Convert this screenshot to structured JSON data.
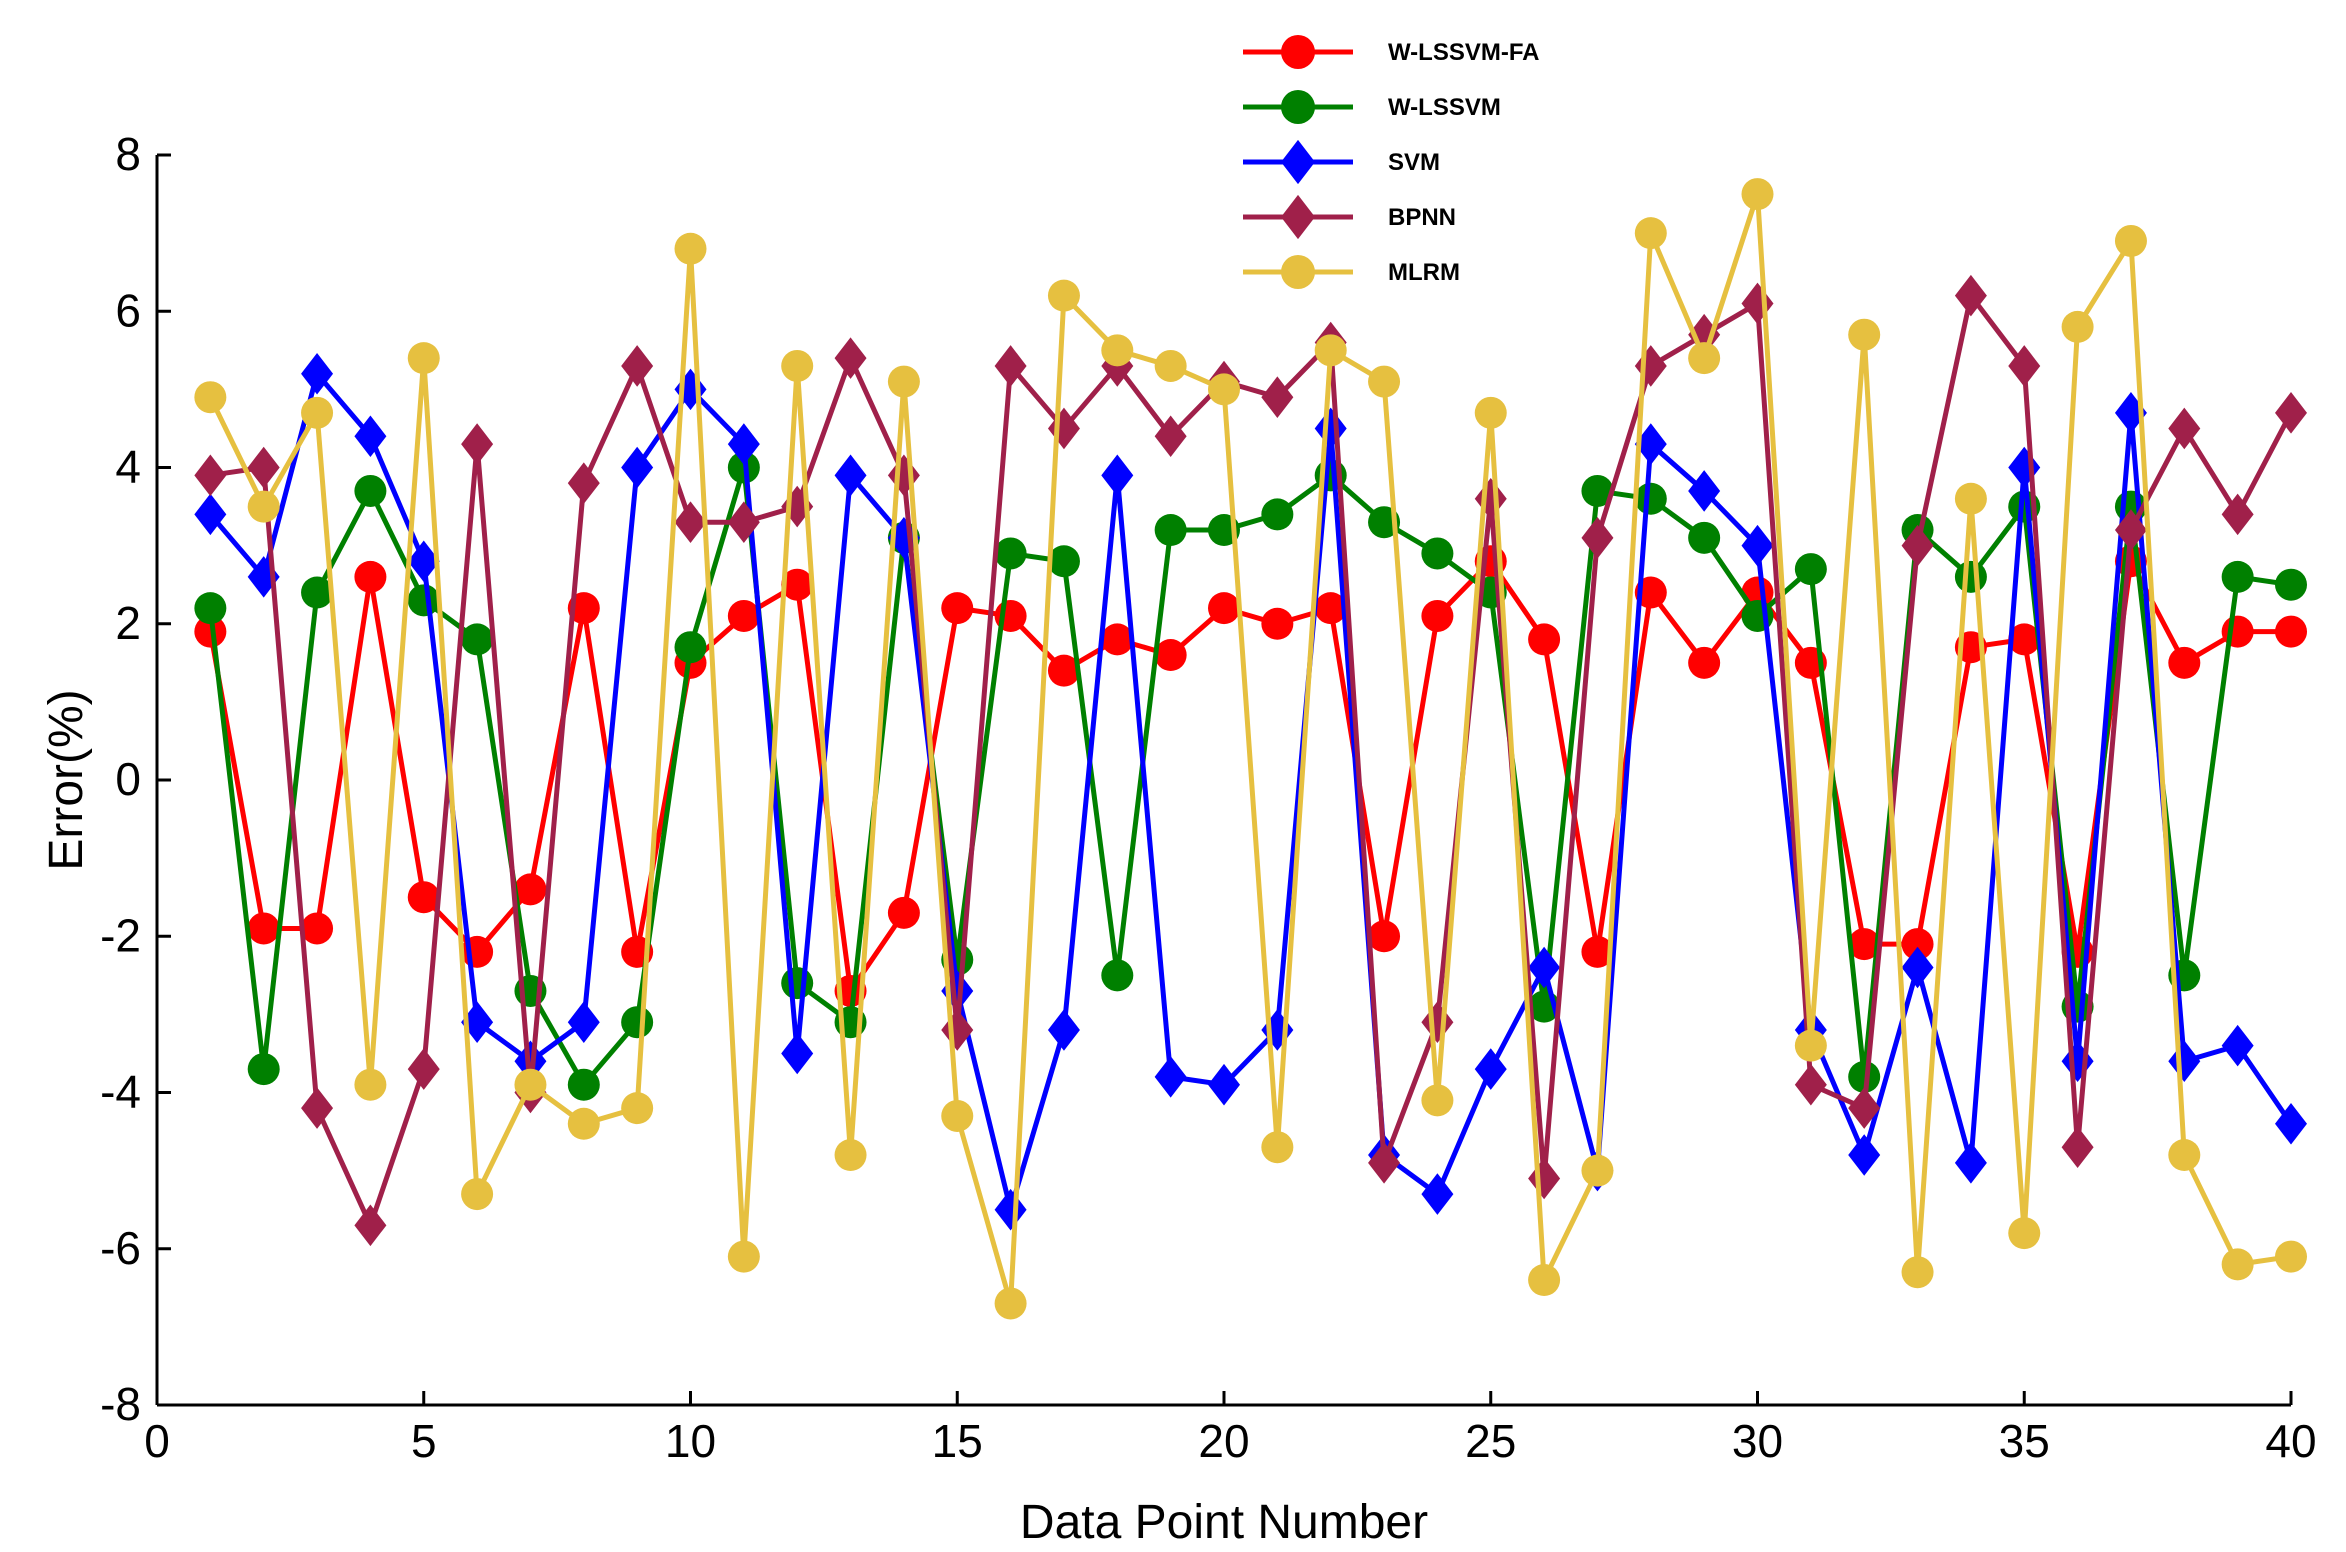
{
  "chart_data": {
    "type": "line",
    "title": "",
    "xlabel": "Data Point Number",
    "ylabel": "Error(%)",
    "xlim": [
      0,
      40
    ],
    "ylim": [
      -8,
      8
    ],
    "xticks": [
      0,
      5,
      10,
      15,
      20,
      25,
      30,
      35,
      40
    ],
    "yticks": [
      -8,
      -6,
      -4,
      -2,
      0,
      2,
      4,
      6,
      8
    ],
    "xtick_labels": [
      "0",
      "5",
      "10",
      "15",
      "20",
      "25",
      "30",
      "35",
      "40"
    ],
    "ytick_labels": [
      "-8",
      "-6",
      "-4",
      "-2",
      "0",
      "2",
      "4",
      "6",
      "8"
    ],
    "grid": false,
    "legend_position": "top-center",
    "x": [
      1,
      2,
      3,
      4,
      5,
      6,
      7,
      8,
      9,
      10,
      11,
      12,
      13,
      14,
      15,
      16,
      17,
      18,
      19,
      20,
      21,
      22,
      23,
      24,
      25,
      26,
      27,
      28,
      29,
      30,
      31,
      32,
      33,
      34,
      35,
      36,
      37,
      38,
      39,
      40
    ],
    "series": [
      {
        "name": "W-LSSVM-FA",
        "color": "#ff0000",
        "marker": "circle",
        "values": [
          1.9,
          -1.9,
          -1.9,
          2.6,
          -1.5,
          -2.2,
          -1.4,
          2.2,
          -2.2,
          1.5,
          2.1,
          2.5,
          -2.7,
          -1.7,
          2.2,
          2.1,
          1.4,
          1.8,
          1.6,
          2.2,
          2.0,
          2.2,
          -2.0,
          2.1,
          2.8,
          1.8,
          -2.2,
          2.4,
          1.5,
          2.4,
          1.5,
          -2.1,
          -2.1,
          1.7,
          1.8,
          -2.2,
          2.8,
          1.5,
          1.9,
          1.9
        ]
      },
      {
        "name": "W-LSSVM",
        "color": "#008000",
        "marker": "circle",
        "values": [
          2.2,
          -3.7,
          2.4,
          3.7,
          2.3,
          1.8,
          -2.7,
          -3.9,
          -3.1,
          1.7,
          4.0,
          -2.6,
          -3.1,
          3.1,
          -2.3,
          2.9,
          2.8,
          -2.5,
          3.2,
          3.2,
          3.4,
          3.9,
          3.3,
          2.9,
          2.4,
          -2.9,
          3.7,
          3.6,
          3.1,
          2.1,
          2.7,
          -3.8,
          3.2,
          2.6,
          3.5,
          -2.9,
          3.5,
          -2.5,
          2.6,
          2.5
        ]
      },
      {
        "name": "SVM",
        "color": "#0000ff",
        "marker": "diamond",
        "values": [
          3.4,
          2.6,
          5.2,
          4.4,
          2.8,
          -3.1,
          -3.6,
          -3.1,
          4.0,
          5.0,
          4.3,
          -3.5,
          3.9,
          3.1,
          -2.7,
          -5.5,
          -3.2,
          3.9,
          -3.8,
          -3.9,
          -3.2,
          4.5,
          -4.8,
          -5.3,
          -3.7,
          -2.4,
          -5.0,
          4.3,
          3.7,
          3.0,
          -3.2,
          -4.8,
          -2.4,
          -4.9,
          4.0,
          -3.6,
          4.7,
          -3.6,
          -3.4,
          -4.4
        ]
      },
      {
        "name": "BPNN",
        "color": "#a0204a",
        "marker": "diamond",
        "values": [
          3.9,
          4.0,
          -4.2,
          -5.7,
          -3.7,
          4.3,
          -4.0,
          3.8,
          5.3,
          3.3,
          3.3,
          3.5,
          5.4,
          3.9,
          -3.2,
          5.3,
          4.5,
          5.3,
          4.4,
          5.1,
          4.9,
          5.6,
          -4.9,
          -3.1,
          3.6,
          -5.1,
          3.1,
          5.3,
          5.7,
          6.1,
          -3.9,
          -4.2,
          3.0,
          6.2,
          5.3,
          -4.7,
          3.2,
          4.5,
          3.4,
          4.7
        ]
      },
      {
        "name": "MLRM",
        "color": "#e6c040",
        "marker": "circle",
        "values": [
          4.9,
          3.5,
          4.7,
          -3.9,
          5.4,
          -5.3,
          -3.9,
          -4.4,
          -4.2,
          6.8,
          -6.1,
          5.3,
          -4.8,
          5.1,
          -4.3,
          -6.7,
          6.2,
          5.5,
          5.3,
          5.0,
          -4.7,
          5.5,
          5.1,
          -4.1,
          4.7,
          -6.4,
          -5.0,
          7.0,
          5.4,
          7.5,
          -3.4,
          5.7,
          -6.3,
          3.6,
          -5.8,
          5.8,
          6.9,
          -4.8,
          -6.2,
          -6.1
        ]
      }
    ]
  }
}
